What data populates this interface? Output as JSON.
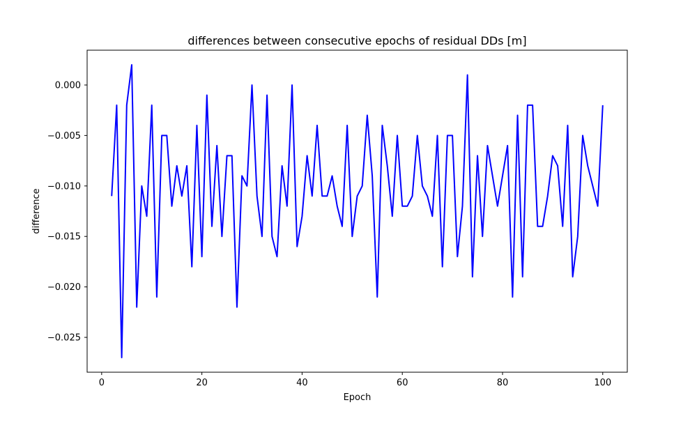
{
  "chart_data": {
    "type": "line",
    "title": "differences between consecutive epochs of residual DDs [m]",
    "xlabel": "Epoch",
    "ylabel": "difference",
    "xlim": [
      -2.9,
      104.9
    ],
    "ylim": [
      -0.02845,
      0.00345
    ],
    "xticks": [
      0,
      20,
      40,
      60,
      80,
      100
    ],
    "xtick_labels": [
      "0",
      "20",
      "40",
      "60",
      "80",
      "100"
    ],
    "yticks": [
      0.0,
      -0.005,
      -0.01,
      -0.015,
      -0.02,
      -0.025
    ],
    "ytick_labels": [
      "0.000",
      "−0.005",
      "−0.010",
      "−0.015",
      "−0.020",
      "−0.025"
    ],
    "grid": false,
    "legend": "none",
    "series": [
      {
        "color": "#0000ff",
        "x": [
          2,
          3,
          4,
          5,
          6,
          7,
          8,
          9,
          10,
          11,
          12,
          13,
          14,
          15,
          16,
          17,
          18,
          19,
          20,
          21,
          22,
          23,
          24,
          25,
          26,
          27,
          28,
          29,
          30,
          31,
          32,
          33,
          34,
          35,
          36,
          37,
          38,
          39,
          40,
          41,
          42,
          43,
          44,
          45,
          46,
          47,
          48,
          49,
          50,
          51,
          52,
          53,
          54,
          55,
          56,
          57,
          58,
          59,
          60,
          61,
          62,
          63,
          64,
          65,
          66,
          67,
          68,
          69,
          70,
          71,
          72,
          73,
          74,
          75,
          76,
          77,
          78,
          79,
          80,
          81,
          82,
          83,
          84,
          85,
          86,
          87,
          88,
          89,
          90,
          91,
          92,
          93,
          94,
          95,
          96,
          97,
          98,
          99,
          100
        ],
        "y": [
          -0.011,
          -0.002,
          -0.027,
          -0.002,
          0.002,
          -0.022,
          -0.01,
          -0.013,
          -0.002,
          -0.021,
          -0.005,
          -0.005,
          -0.012,
          -0.008,
          -0.011,
          -0.008,
          -0.018,
          -0.004,
          -0.017,
          -0.001,
          -0.014,
          -0.006,
          -0.015,
          -0.007,
          -0.007,
          -0.022,
          -0.009,
          -0.01,
          0.0,
          -0.011,
          -0.015,
          -0.001,
          -0.015,
          -0.017,
          -0.008,
          -0.012,
          0.0,
          -0.016,
          -0.013,
          -0.007,
          -0.011,
          -0.004,
          -0.011,
          -0.011,
          -0.009,
          -0.012,
          -0.014,
          -0.004,
          -0.015,
          -0.011,
          -0.01,
          -0.003,
          -0.009,
          -0.021,
          -0.004,
          -0.008,
          -0.013,
          -0.005,
          -0.012,
          -0.012,
          -0.011,
          -0.005,
          -0.01,
          -0.011,
          -0.013,
          -0.005,
          -0.018,
          -0.005,
          -0.005,
          -0.017,
          -0.012,
          0.001,
          -0.019,
          -0.007,
          -0.015,
          -0.006,
          -0.009,
          -0.012,
          -0.009,
          -0.006,
          -0.021,
          -0.003,
          -0.019,
          -0.002,
          -0.002,
          -0.014,
          -0.014,
          -0.011,
          -0.007,
          -0.008,
          -0.014,
          -0.004,
          -0.019,
          -0.015,
          -0.005,
          -0.008,
          -0.01,
          -0.012,
          -0.002
        ]
      }
    ]
  }
}
